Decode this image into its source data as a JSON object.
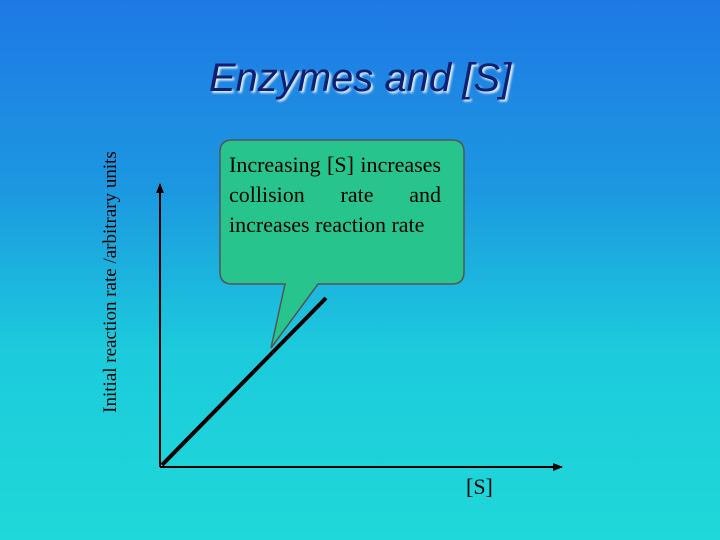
{
  "title": "Enzymes and [S]",
  "axes": {
    "y_label_line1": "Initial reaction rate /",
    "y_label_line2": "arbitrary units",
    "x_label": "[S]"
  },
  "callout": {
    "text": "Increasing [S] increases collision rate and increases reaction rate"
  },
  "colors": {
    "callout_fill": "#27c48e",
    "line": "#000000",
    "title": "#102070"
  }
}
